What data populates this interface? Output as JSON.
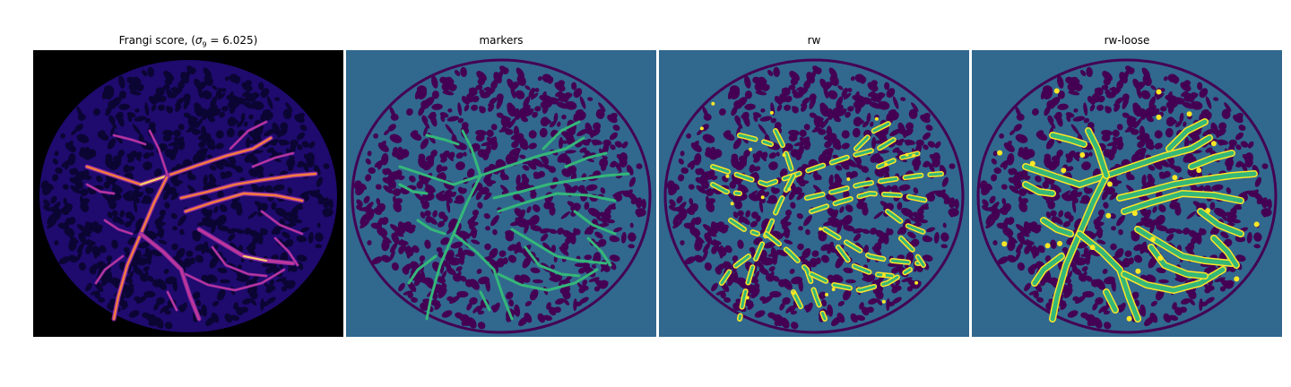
{
  "panels": [
    {
      "title_prefix": "Frangi score, (",
      "title_sigma": "σ",
      "title_sub": "9",
      "title_suffix": " = 6.025)"
    },
    {
      "title": "markers"
    },
    {
      "title": "rw"
    },
    {
      "title": "rw-loose"
    }
  ],
  "colors": {
    "black": "#000000",
    "frangi_disc": "#1f0a6e",
    "frangi_blob": "#0b0533",
    "frangi_vessel": "#8b2aa0",
    "frangi_hot": "#f57d3d",
    "frangi_bright": "#ffd26a",
    "bg_teal": "#31688e",
    "region_purple": "#440154",
    "vessel_green": "#35b779",
    "vessel_yellow": "#fde725"
  }
}
